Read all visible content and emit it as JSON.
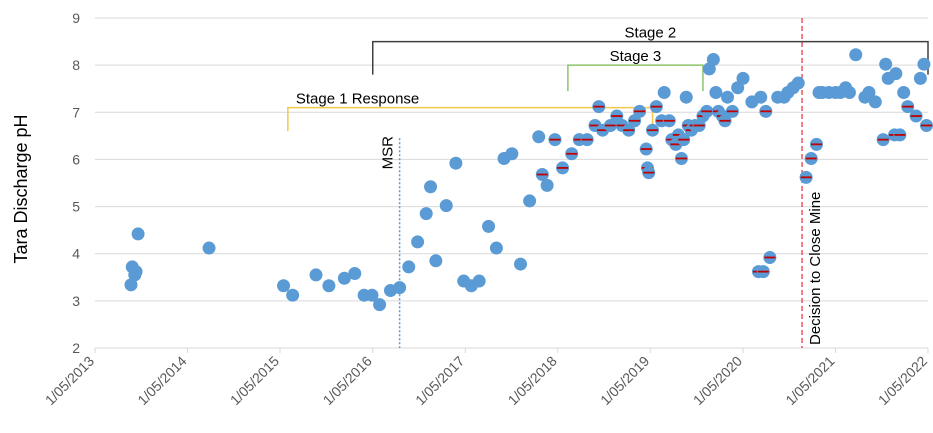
{
  "chart_data": {
    "type": "scatter",
    "title": "",
    "xlabel": "",
    "ylabel": "Tara Discharge pH",
    "ylim": [
      2,
      9
    ],
    "yticks": [
      "2",
      "3",
      "4",
      "5",
      "6",
      "7",
      "8",
      "9"
    ],
    "xlim": [
      "2013-05-01",
      "2022-05-01"
    ],
    "xticks": [
      {
        "date": "2013-05-01",
        "label": "1/05/2013"
      },
      {
        "date": "2014-05-01",
        "label": "1/05/2014"
      },
      {
        "date": "2015-05-01",
        "label": "1/05/2015"
      },
      {
        "date": "2016-05-01",
        "label": "1/05/2016"
      },
      {
        "date": "2017-05-01",
        "label": "1/05/2017"
      },
      {
        "date": "2018-05-01",
        "label": "1/05/2018"
      },
      {
        "date": "2019-05-01",
        "label": "1/05/2019"
      },
      {
        "date": "2020-05-01",
        "label": "1/05/2020"
      },
      {
        "date": "2021-05-01",
        "label": "1/05/2021"
      },
      {
        "date": "2022-05-01",
        "label": "1/05/2022"
      }
    ],
    "grid": {
      "horizontal": true,
      "vertical": false
    },
    "colors": {
      "point": "#5B9BD5",
      "grid": "#D9D9D9",
      "marker_dash": "#C00000",
      "msr_line": "#5B9BD5",
      "decision_line": "#E0303A",
      "stage1": "#F2C94C",
      "stage2": "#404040",
      "stage3": "#8DC56C"
    },
    "points": [
      {
        "x": "2013-09-20",
        "y": 3.34
      },
      {
        "x": "2013-09-25",
        "y": 3.72
      },
      {
        "x": "2013-10-05",
        "y": 3.55
      },
      {
        "x": "2013-10-10",
        "y": 3.62
      },
      {
        "x": "2013-10-18",
        "y": 4.42
      },
      {
        "x": "2014-07-25",
        "y": 4.12
      },
      {
        "x": "2015-05-15",
        "y": 3.32
      },
      {
        "x": "2015-06-20",
        "y": 3.12
      },
      {
        "x": "2015-09-20",
        "y": 3.55
      },
      {
        "x": "2015-11-10",
        "y": 3.32
      },
      {
        "x": "2016-01-10",
        "y": 3.48
      },
      {
        "x": "2016-02-20",
        "y": 3.58
      },
      {
        "x": "2016-03-28",
        "y": 3.12
      },
      {
        "x": "2016-04-28",
        "y": 3.12
      },
      {
        "x": "2016-05-28",
        "y": 2.92
      },
      {
        "x": "2016-07-10",
        "y": 3.22
      },
      {
        "x": "2016-08-15",
        "y": 3.28
      },
      {
        "x": "2016-09-20",
        "y": 3.72
      },
      {
        "x": "2016-10-25",
        "y": 4.25
      },
      {
        "x": "2016-11-28",
        "y": 4.85
      },
      {
        "x": "2016-12-15",
        "y": 5.42
      },
      {
        "x": "2017-01-05",
        "y": 3.85
      },
      {
        "x": "2017-02-15",
        "y": 5.02
      },
      {
        "x": "2017-03-25",
        "y": 5.92
      },
      {
        "x": "2017-04-25",
        "y": 3.42
      },
      {
        "x": "2017-05-25",
        "y": 3.32
      },
      {
        "x": "2017-06-25",
        "y": 3.42
      },
      {
        "x": "2017-08-01",
        "y": 4.58
      },
      {
        "x": "2017-09-01",
        "y": 4.12
      },
      {
        "x": "2017-10-01",
        "y": 6.02
      },
      {
        "x": "2017-11-01",
        "y": 6.12
      },
      {
        "x": "2017-12-05",
        "y": 3.78
      },
      {
        "x": "2018-01-10",
        "y": 5.12
      },
      {
        "x": "2018-02-15",
        "y": 6.48
      },
      {
        "x": "2018-03-01",
        "y": 5.68
      },
      {
        "x": "2018-03-20",
        "y": 5.45
      },
      {
        "x": "2018-04-20",
        "y": 6.42
      },
      {
        "x": "2018-05-20",
        "y": 5.82
      },
      {
        "x": "2018-06-25",
        "y": 6.12
      },
      {
        "x": "2018-07-25",
        "y": 6.42
      },
      {
        "x": "2018-08-25",
        "y": 6.42
      },
      {
        "x": "2018-09-25",
        "y": 6.72
      },
      {
        "x": "2018-10-10",
        "y": 7.12
      },
      {
        "x": "2018-10-25",
        "y": 6.62
      },
      {
        "x": "2018-11-25",
        "y": 6.72
      },
      {
        "x": "2018-12-20",
        "y": 6.92
      },
      {
        "x": "2019-01-10",
        "y": 6.72
      },
      {
        "x": "2019-02-05",
        "y": 6.62
      },
      {
        "x": "2019-02-28",
        "y": 6.82
      },
      {
        "x": "2019-03-20",
        "y": 7.02
      },
      {
        "x": "2019-04-15",
        "y": 6.22
      },
      {
        "x": "2019-04-20",
        "y": 5.82
      },
      {
        "x": "2019-04-25",
        "y": 5.72
      },
      {
        "x": "2019-05-10",
        "y": 6.62
      },
      {
        "x": "2019-05-25",
        "y": 7.12
      },
      {
        "x": "2019-06-15",
        "y": 6.82
      },
      {
        "x": "2019-06-25",
        "y": 7.42
      },
      {
        "x": "2019-07-15",
        "y": 6.82
      },
      {
        "x": "2019-07-25",
        "y": 6.42
      },
      {
        "x": "2019-08-10",
        "y": 6.32
      },
      {
        "x": "2019-08-20",
        "y": 6.52
      },
      {
        "x": "2019-09-01",
        "y": 6.02
      },
      {
        "x": "2019-09-10",
        "y": 6.42
      },
      {
        "x": "2019-09-20",
        "y": 7.32
      },
      {
        "x": "2019-09-28",
        "y": 6.72
      },
      {
        "x": "2019-10-10",
        "y": 6.62
      },
      {
        "x": "2019-10-25",
        "y": 6.72
      },
      {
        "x": "2019-11-10",
        "y": 6.72
      },
      {
        "x": "2019-11-25",
        "y": 6.92
      },
      {
        "x": "2019-12-10",
        "y": 7.02
      },
      {
        "x": "2019-12-20",
        "y": 7.92
      },
      {
        "x": "2020-01-05",
        "y": 8.12
      },
      {
        "x": "2020-01-15",
        "y": 7.42
      },
      {
        "x": "2020-01-25",
        "y": 7.02
      },
      {
        "x": "2020-02-10",
        "y": 6.92
      },
      {
        "x": "2020-02-20",
        "y": 6.82
      },
      {
        "x": "2020-03-01",
        "y": 7.32
      },
      {
        "x": "2020-03-20",
        "y": 7.02
      },
      {
        "x": "2020-04-10",
        "y": 7.52
      },
      {
        "x": "2020-05-01",
        "y": 7.72
      },
      {
        "x": "2020-06-05",
        "y": 7.22
      },
      {
        "x": "2020-07-01",
        "y": 3.62
      },
      {
        "x": "2020-07-10",
        "y": 7.32
      },
      {
        "x": "2020-07-20",
        "y": 3.62
      },
      {
        "x": "2020-07-30",
        "y": 7.02
      },
      {
        "x": "2020-08-15",
        "y": 3.92
      },
      {
        "x": "2020-09-15",
        "y": 7.32
      },
      {
        "x": "2020-10-10",
        "y": 7.32
      },
      {
        "x": "2020-10-25",
        "y": 7.42
      },
      {
        "x": "2020-11-15",
        "y": 7.52
      },
      {
        "x": "2020-12-05",
        "y": 7.62
      },
      {
        "x": "2021-01-05",
        "y": 5.62
      },
      {
        "x": "2021-01-25",
        "y": 6.02
      },
      {
        "x": "2021-02-15",
        "y": 6.32
      },
      {
        "x": "2021-02-25",
        "y": 7.42
      },
      {
        "x": "2021-03-10",
        "y": 7.42
      },
      {
        "x": "2021-04-05",
        "y": 7.42
      },
      {
        "x": "2021-05-01",
        "y": 7.42
      },
      {
        "x": "2021-05-20",
        "y": 7.42
      },
      {
        "x": "2021-06-10",
        "y": 7.52
      },
      {
        "x": "2021-06-25",
        "y": 7.42
      },
      {
        "x": "2021-07-20",
        "y": 8.22
      },
      {
        "x": "2021-08-25",
        "y": 7.32
      },
      {
        "x": "2021-09-10",
        "y": 7.42
      },
      {
        "x": "2021-10-05",
        "y": 7.22
      },
      {
        "x": "2021-11-05",
        "y": 6.42
      },
      {
        "x": "2021-11-15",
        "y": 8.02
      },
      {
        "x": "2021-11-25",
        "y": 7.72
      },
      {
        "x": "2021-12-20",
        "y": 6.52
      },
      {
        "x": "2021-12-25",
        "y": 7.82
      },
      {
        "x": "2022-01-10",
        "y": 6.52
      },
      {
        "x": "2022-01-25",
        "y": 7.42
      },
      {
        "x": "2022-02-10",
        "y": 7.12
      },
      {
        "x": "2022-03-15",
        "y": 6.92
      },
      {
        "x": "2022-04-01",
        "y": 7.72
      },
      {
        "x": "2022-04-15",
        "y": 8.02
      },
      {
        "x": "2022-04-25",
        "y": 6.72
      }
    ],
    "reference_lines": [
      {
        "label": "MSR",
        "x": "2016-08-15",
        "style": "dotted"
      },
      {
        "label": "Decision to Close Mine",
        "x": "2020-12-20",
        "style": "dashed"
      }
    ],
    "stage_brackets": [
      {
        "label": "Stage 1 Response",
        "x_start": "2015-06-01",
        "x_end": "2019-05-10",
        "y_top": 7.1,
        "y_bottom": 6.6
      },
      {
        "label": "Stage 2",
        "x_start": "2016-05-01",
        "x_end": "2022-05-01",
        "y_top": 8.5,
        "y_bottom": 7.8
      },
      {
        "label": "Stage 3",
        "x_start": "2018-06-10",
        "x_end": "2019-11-25",
        "y_top": 8.0,
        "y_bottom": 7.45
      }
    ]
  }
}
